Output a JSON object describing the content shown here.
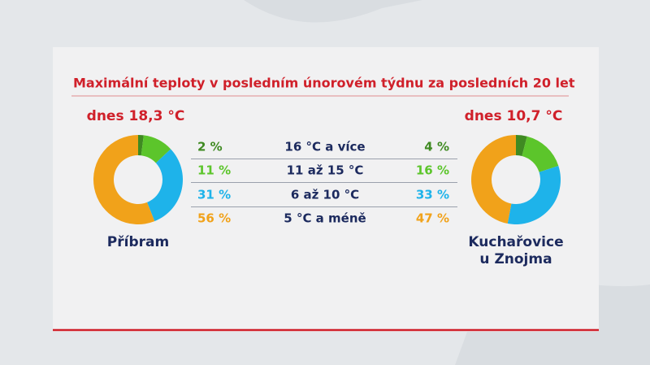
{
  "chart_data": {
    "type": "donut",
    "title": "Maximální teploty v posledním únorovém týdnu za posledních 20 let",
    "categories": [
      "16 °C a více",
      "11 až 15 °C",
      "6 až 10 °C",
      "5 °C a méně"
    ],
    "colors": [
      "#3f8a22",
      "#5cc52b",
      "#1eb3ea",
      "#f1a21a"
    ],
    "series": [
      {
        "name": "Příbram",
        "annotation": "dnes 18,3 °C",
        "values": [
          2,
          11,
          31,
          56
        ],
        "value_labels": [
          "2 %",
          "11 %",
          "31 %",
          "56 %"
        ]
      },
      {
        "name": "Kuchařovice u Znojma",
        "annotation": "dnes 10,7 °C",
        "values": [
          4,
          16,
          33,
          47
        ],
        "value_labels": [
          "4 %",
          "16 %",
          "33 %",
          "47 %"
        ]
      }
    ]
  }
}
